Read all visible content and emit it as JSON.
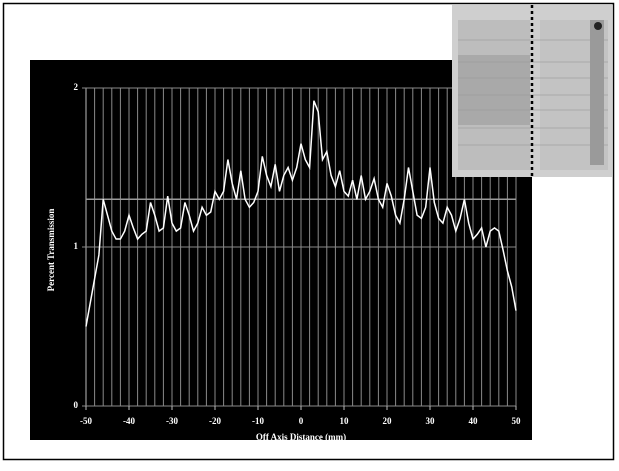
{
  "chart_data": {
    "type": "line",
    "xlabel": "Off Axis Distance (mm)",
    "ylabel": "Percent Transmission",
    "x": [
      -50,
      -49,
      -48,
      -47,
      -46,
      -45,
      -44,
      -43,
      -42,
      -41,
      -40,
      -39,
      -38,
      -37,
      -36,
      -35,
      -34,
      -33,
      -32,
      -31,
      -30,
      -29,
      -28,
      -27,
      -26,
      -25,
      -24,
      -23,
      -22,
      -21,
      -20,
      -19,
      -18,
      -17,
      -16,
      -15,
      -14,
      -13,
      -12,
      -11,
      -10,
      -9,
      -8,
      -7,
      -6,
      -5,
      -4,
      -3,
      -2,
      -1,
      0,
      1,
      2,
      3,
      4,
      5,
      6,
      7,
      8,
      9,
      10,
      11,
      12,
      13,
      14,
      15,
      16,
      17,
      18,
      19,
      20,
      21,
      22,
      23,
      24,
      25,
      26,
      27,
      28,
      29,
      30,
      31,
      32,
      33,
      34,
      35,
      36,
      37,
      38,
      39,
      40,
      41,
      42,
      43,
      44,
      45,
      46,
      47,
      48,
      49,
      50
    ],
    "values": [
      0.5,
      0.65,
      0.8,
      0.95,
      1.3,
      1.2,
      1.1,
      1.05,
      1.05,
      1.1,
      1.2,
      1.12,
      1.05,
      1.08,
      1.1,
      1.28,
      1.2,
      1.1,
      1.12,
      1.32,
      1.15,
      1.1,
      1.12,
      1.28,
      1.2,
      1.1,
      1.15,
      1.25,
      1.2,
      1.22,
      1.35,
      1.3,
      1.35,
      1.55,
      1.4,
      1.3,
      1.48,
      1.3,
      1.25,
      1.28,
      1.35,
      1.57,
      1.45,
      1.38,
      1.52,
      1.35,
      1.45,
      1.5,
      1.42,
      1.5,
      1.65,
      1.55,
      1.5,
      1.92,
      1.85,
      1.55,
      1.6,
      1.45,
      1.38,
      1.48,
      1.35,
      1.32,
      1.42,
      1.3,
      1.45,
      1.3,
      1.35,
      1.43,
      1.3,
      1.25,
      1.4,
      1.32,
      1.2,
      1.15,
      1.3,
      1.5,
      1.35,
      1.2,
      1.18,
      1.25,
      1.5,
      1.28,
      1.18,
      1.15,
      1.25,
      1.2,
      1.1,
      1.18,
      1.3,
      1.15,
      1.05,
      1.08,
      1.12,
      1.0,
      1.1,
      1.12,
      1.1,
      0.98,
      0.85,
      0.75,
      0.6
    ],
    "color": "#ffffff",
    "xlim": [
      -50,
      50
    ],
    "xticks": [
      -50,
      -40,
      -30,
      -20,
      -10,
      0,
      10,
      20,
      30,
      40,
      50
    ],
    "ylim": [
      0,
      2
    ],
    "yticks": [
      0,
      1,
      2
    ],
    "grid": {
      "x_step": 2
    },
    "reference_line": 1.3
  }
}
